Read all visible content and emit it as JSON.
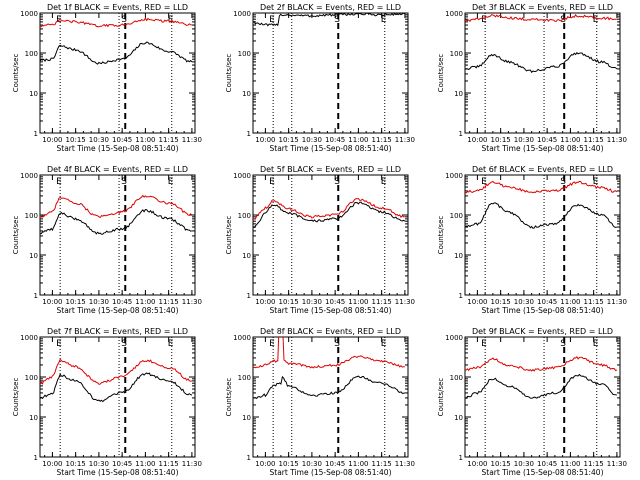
{
  "colors": {
    "events": "#000000",
    "lld": "#e00000",
    "axis": "#000000",
    "background": "#ffffff"
  },
  "markers": [
    "E",
    "S",
    "E"
  ],
  "chart_data": [
    {
      "type": "line",
      "title": "Det 1f BLACK = Events, RED = LLD",
      "xlabel": "Start Time (15-Sep-08 08:51:40)",
      "ylabel": "Counts/sec",
      "yscale": "log",
      "ylim": [
        1,
        1000
      ],
      "yticks": [
        "1",
        "10",
        "100",
        "1000"
      ],
      "xticks": [
        "10:00",
        "10:15",
        "10:30",
        "10:45",
        "11:00",
        "11:15",
        "11:30"
      ],
      "xlim": [
        "09:52",
        "11:32"
      ],
      "vlines_dotted": [
        "10:05",
        "10:43",
        "11:17"
      ],
      "vline_dashed": "10:47",
      "series": [
        {
          "name": "Events",
          "color": "black",
          "x": [
            "09:52",
            "10:00",
            "10:05",
            "10:15",
            "10:30",
            "10:45",
            "11:00",
            "11:15",
            "11:30"
          ],
          "y": [
            65,
            70,
            150,
            120,
            55,
            70,
            180,
            110,
            60
          ]
        },
        {
          "name": "LLD",
          "color": "red",
          "x": [
            "09:52",
            "10:00",
            "10:05",
            "10:15",
            "10:30",
            "10:45",
            "11:00",
            "11:15",
            "11:30"
          ],
          "y": [
            480,
            500,
            650,
            600,
            480,
            500,
            700,
            620,
            500
          ]
        }
      ]
    },
    {
      "type": "line",
      "title": "Det 2f BLACK = Events, RED = LLD",
      "xlabel": "Start Time (15-Sep-08 08:51:40)",
      "ylabel": "Counts/sec",
      "yscale": "log",
      "ylim": [
        1,
        1000
      ],
      "yticks": [
        "1",
        "10",
        "100",
        "1000"
      ],
      "xticks": [
        "10:00",
        "10:15",
        "10:30",
        "10:45",
        "11:00",
        "11:15",
        "11:30"
      ],
      "xlim": [
        "09:52",
        "11:32"
      ],
      "vlines_dotted": [
        "10:05",
        "10:17",
        "11:17"
      ],
      "vline_dashed": "10:47",
      "series": [
        {
          "name": "Events",
          "color": "black",
          "x": [
            "09:52",
            "09:55",
            "10:00",
            "10:08",
            "10:09",
            "10:30",
            "10:45",
            "11:00",
            "11:15",
            "11:30"
          ],
          "y": [
            600,
            550,
            500,
            500,
            900,
            850,
            900,
            950,
            900,
            950
          ]
        },
        {
          "name": "LLD",
          "color": "red",
          "x": [
            "09:52",
            "10:00",
            "10:15",
            "10:30",
            "10:45",
            "11:00",
            "11:15",
            "11:30"
          ],
          "y": [
            1300,
            1250,
            1300,
            1300,
            1300,
            1350,
            1300,
            1300
          ]
        }
      ]
    },
    {
      "type": "line",
      "title": "Det 3f BLACK = Events, RED = LLD",
      "xlabel": "Start Time (15-Sep-08 08:51:40)",
      "ylabel": "Counts/sec",
      "yscale": "log",
      "ylim": [
        1,
        1000
      ],
      "yticks": [
        "1",
        "10",
        "100",
        "1000"
      ],
      "xticks": [
        "10:00",
        "10:15",
        "10:30",
        "10:45",
        "11:00",
        "11:15",
        "11:30"
      ],
      "xlim": [
        "09:52",
        "11:32"
      ],
      "vlines_dotted": [
        "10:05",
        "10:43",
        "11:17"
      ],
      "vline_dashed": "10:56",
      "series": [
        {
          "name": "Events",
          "color": "black",
          "x": [
            "09:52",
            "10:00",
            "10:10",
            "10:20",
            "10:35",
            "10:50",
            "11:05",
            "11:20",
            "11:30"
          ],
          "y": [
            40,
            45,
            90,
            60,
            35,
            45,
            100,
            60,
            40
          ]
        },
        {
          "name": "LLD",
          "color": "red",
          "x": [
            "09:52",
            "10:00",
            "10:10",
            "10:30",
            "10:50",
            "11:05",
            "11:20",
            "11:30"
          ],
          "y": [
            650,
            700,
            850,
            700,
            650,
            850,
            750,
            700
          ]
        }
      ]
    },
    {
      "type": "line",
      "title": "Det 4f BLACK = Events, RED = LLD",
      "xlabel": "Start Time (15-Sep-08 08:51:40)",
      "ylabel": "Counts/sec",
      "yscale": "log",
      "ylim": [
        1,
        1000
      ],
      "yticks": [
        "1",
        "10",
        "100",
        "1000"
      ],
      "xticks": [
        "10:00",
        "10:15",
        "10:30",
        "10:45",
        "11:00",
        "11:15",
        "11:30"
      ],
      "xlim": [
        "09:52",
        "11:32"
      ],
      "vlines_dotted": [
        "10:05",
        "10:43",
        "11:17"
      ],
      "vline_dashed": "10:47",
      "series": [
        {
          "name": "Events",
          "color": "black",
          "x": [
            "09:52",
            "10:00",
            "10:05",
            "10:15",
            "10:30",
            "10:45",
            "11:00",
            "11:15",
            "11:30"
          ],
          "y": [
            35,
            45,
            110,
            80,
            35,
            45,
            130,
            80,
            40
          ]
        },
        {
          "name": "LLD",
          "color": "red",
          "x": [
            "09:52",
            "10:00",
            "10:05",
            "10:15",
            "10:30",
            "10:45",
            "11:00",
            "11:15",
            "11:30"
          ],
          "y": [
            90,
            120,
            280,
            200,
            90,
            120,
            300,
            200,
            100
          ]
        }
      ]
    },
    {
      "type": "line",
      "title": "Det 5f BLACK = Events, RED = LLD",
      "xlabel": "Start Time (15-Sep-08 08:51:40)",
      "ylabel": "Counts/sec",
      "yscale": "log",
      "ylim": [
        1,
        1000
      ],
      "yticks": [
        "1",
        "10",
        "100",
        "1000"
      ],
      "xticks": [
        "10:00",
        "10:15",
        "10:30",
        "10:45",
        "11:00",
        "11:15",
        "11:30"
      ],
      "xlim": [
        "09:52",
        "11:32"
      ],
      "vlines_dotted": [
        "10:05",
        "10:17",
        "11:17"
      ],
      "vline_dashed": "10:47",
      "series": [
        {
          "name": "Events",
          "color": "black",
          "x": [
            "09:52",
            "09:55",
            "10:00",
            "10:05",
            "10:15",
            "10:30",
            "10:45",
            "11:00",
            "11:15",
            "11:30"
          ],
          "y": [
            50,
            60,
            120,
            180,
            110,
            70,
            80,
            200,
            120,
            70
          ]
        },
        {
          "name": "LLD",
          "color": "red",
          "x": [
            "09:52",
            "10:00",
            "10:05",
            "10:15",
            "10:30",
            "10:45",
            "11:00",
            "11:15",
            "11:30"
          ],
          "y": [
            80,
            150,
            230,
            140,
            90,
            100,
            250,
            150,
            90
          ]
        }
      ]
    },
    {
      "type": "line",
      "title": "Det 6f BLACK = Events, RED = LLD",
      "xlabel": "Start Time (15-Sep-08 08:51:40)",
      "ylabel": "Counts/sec",
      "yscale": "log",
      "ylim": [
        1,
        1000
      ],
      "yticks": [
        "1",
        "10",
        "100",
        "1000"
      ],
      "xticks": [
        "10:00",
        "10:15",
        "10:30",
        "10:45",
        "11:00",
        "11:15",
        "11:30"
      ],
      "xlim": [
        "09:52",
        "11:32"
      ],
      "vlines_dotted": [
        "10:05",
        "10:43",
        "11:17"
      ],
      "vline_dashed": "10:56",
      "series": [
        {
          "name": "Events",
          "color": "black",
          "x": [
            "09:52",
            "10:00",
            "10:10",
            "10:20",
            "10:35",
            "10:50",
            "11:05",
            "11:20",
            "11:30"
          ],
          "y": [
            50,
            60,
            200,
            120,
            50,
            60,
            180,
            100,
            50
          ]
        },
        {
          "name": "LLD",
          "color": "red",
          "x": [
            "09:52",
            "10:00",
            "10:10",
            "10:20",
            "10:35",
            "10:50",
            "11:05",
            "11:20",
            "11:30"
          ],
          "y": [
            380,
            400,
            650,
            500,
            380,
            400,
            650,
            480,
            380
          ]
        }
      ]
    },
    {
      "type": "line",
      "title": "Det 7f BLACK = Events, RED = LLD",
      "xlabel": "Start Time (15-Sep-08 08:51:40)",
      "ylabel": "Counts/sec",
      "yscale": "log",
      "ylim": [
        1,
        1000
      ],
      "yticks": [
        "1",
        "10",
        "100",
        "1000"
      ],
      "xticks": [
        "10:00",
        "10:15",
        "10:30",
        "10:45",
        "11:00",
        "11:15",
        "11:30"
      ],
      "xlim": [
        "09:52",
        "11:32"
      ],
      "vlines_dotted": [
        "10:05",
        "10:43",
        "11:17"
      ],
      "vline_dashed": "10:47",
      "series": [
        {
          "name": "Events",
          "color": "black",
          "x": [
            "09:52",
            "10:00",
            "10:05",
            "10:15",
            "10:30",
            "10:45",
            "11:00",
            "11:15",
            "11:30"
          ],
          "y": [
            30,
            40,
            110,
            80,
            25,
            40,
            120,
            80,
            35
          ]
        },
        {
          "name": "LLD",
          "color": "red",
          "x": [
            "09:52",
            "10:00",
            "10:05",
            "10:15",
            "10:30",
            "10:45",
            "11:00",
            "11:15",
            "11:30"
          ],
          "y": [
            70,
            100,
            260,
            180,
            70,
            100,
            260,
            170,
            80
          ]
        }
      ]
    },
    {
      "type": "line",
      "title": "Det 8f BLACK = Events, RED = LLD",
      "xlabel": "Start Time (15-Sep-08 08:51:40)",
      "ylabel": "Counts/sec",
      "yscale": "log",
      "ylim": [
        1,
        1000
      ],
      "yticks": [
        "1",
        "10",
        "100",
        "1000"
      ],
      "xticks": [
        "10:00",
        "10:15",
        "10:30",
        "10:45",
        "11:00",
        "11:15",
        "11:30"
      ],
      "xlim": [
        "09:52",
        "11:32"
      ],
      "vlines_dotted": [
        "10:05",
        "10:17",
        "11:17"
      ],
      "vline_dashed": "10:47",
      "series": [
        {
          "name": "Events",
          "color": "black",
          "x": [
            "09:52",
            "10:00",
            "10:05",
            "10:10",
            "10:11",
            "10:15",
            "10:30",
            "10:45",
            "11:00",
            "11:15",
            "11:30"
          ],
          "y": [
            30,
            35,
            60,
            70,
            100,
            60,
            35,
            40,
            100,
            70,
            40
          ]
        },
        {
          "name": "LLD",
          "color": "red",
          "x": [
            "09:52",
            "10:00",
            "10:05",
            "10:08",
            "10:09",
            "10:11",
            "10:12",
            "10:15",
            "10:30",
            "10:45",
            "11:00",
            "11:15",
            "11:30"
          ],
          "y": [
            170,
            200,
            250,
            250,
            3000,
            3000,
            250,
            220,
            180,
            200,
            330,
            250,
            180
          ]
        }
      ]
    },
    {
      "type": "line",
      "title": "Det 9f BLACK = Events, RED = LLD",
      "xlabel": "Start Time (15-Sep-08 08:51:40)",
      "ylabel": "Counts/sec",
      "yscale": "log",
      "ylim": [
        1,
        1000
      ],
      "yticks": [
        "1",
        "10",
        "100",
        "1000"
      ],
      "xticks": [
        "10:00",
        "10:15",
        "10:30",
        "10:45",
        "11:00",
        "11:15",
        "11:30"
      ],
      "xlim": [
        "09:52",
        "11:32"
      ],
      "vlines_dotted": [
        "10:05",
        "10:43",
        "11:17"
      ],
      "vline_dashed": "10:56",
      "series": [
        {
          "name": "Events",
          "color": "black",
          "x": [
            "09:52",
            "10:00",
            "10:10",
            "10:20",
            "10:35",
            "10:50",
            "11:05",
            "11:20",
            "11:30"
          ],
          "y": [
            30,
            40,
            90,
            60,
            30,
            40,
            110,
            65,
            35
          ]
        },
        {
          "name": "LLD",
          "color": "red",
          "x": [
            "09:52",
            "10:00",
            "10:10",
            "10:20",
            "10:35",
            "10:50",
            "11:05",
            "11:20",
            "11:30"
          ],
          "y": [
            150,
            170,
            280,
            200,
            150,
            170,
            300,
            200,
            150
          ]
        }
      ]
    }
  ]
}
